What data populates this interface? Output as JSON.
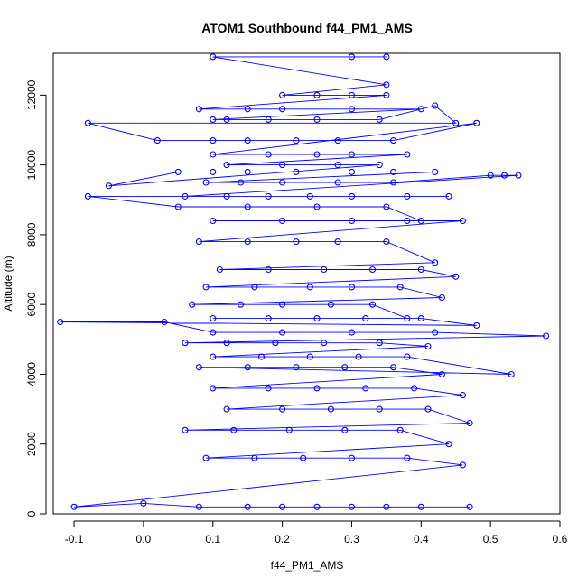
{
  "chart_data": {
    "type": "scatter",
    "title": "ATOM1 Southbound f44_PM1_AMS",
    "xlabel": "f44_PM1_AMS",
    "ylabel": "Altitude (m)",
    "xlim": [
      -0.13,
      0.6
    ],
    "ylim": [
      0,
      13200
    ],
    "x_ticks": [
      -0.1,
      0.0,
      0.1,
      0.2,
      0.3,
      0.4,
      0.5,
      0.6
    ],
    "x_tick_labels": [
      "-0.1",
      "0.0",
      "0.1",
      "0.2",
      "0.3",
      "0.4",
      "0.5",
      "0.6"
    ],
    "y_ticks": [
      0,
      2000,
      4000,
      6000,
      8000,
      10000,
      12000
    ],
    "y_tick_labels": [
      "0",
      "2000",
      "4000",
      "6000",
      "8000",
      "10000",
      "12000"
    ],
    "grid": false,
    "marker": "open-circle",
    "connected": true,
    "series": [
      {
        "color": "#0000ff",
        "x": [
          0.3,
          0.35,
          0.1,
          0.35,
          0.2,
          0.25,
          0.3,
          0.35,
          0.08,
          0.15,
          0.2,
          0.3,
          0.4,
          0.1,
          0.12,
          0.18,
          0.25,
          0.34,
          0.42,
          0.45,
          -0.08,
          0.02,
          0.1,
          0.15,
          0.22,
          0.28,
          0.36,
          0.48,
          0.1,
          0.18,
          0.25,
          0.3,
          0.38,
          0.12,
          0.2,
          0.28,
          0.34,
          -0.05,
          0.05,
          0.1,
          0.15,
          0.22,
          0.3,
          0.36,
          0.42,
          0.09,
          0.14,
          0.2,
          0.28,
          0.36,
          0.5,
          0.52,
          0.54,
          0.06,
          0.12,
          0.18,
          0.24,
          0.3,
          0.38,
          0.44,
          -0.08,
          0.05,
          0.15,
          0.25,
          0.35,
          0.4,
          0.1,
          0.2,
          0.3,
          0.38,
          0.46,
          0.08,
          0.15,
          0.22,
          0.28,
          0.35,
          0.42,
          0.11,
          0.18,
          0.26,
          0.33,
          0.4,
          0.45,
          0.09,
          0.16,
          0.24,
          0.3,
          0.37,
          0.43,
          0.07,
          0.14,
          0.2,
          0.27,
          0.33,
          0.38,
          0.1,
          0.18,
          0.25,
          0.32,
          0.4,
          0.48,
          -0.12,
          0.03,
          0.1,
          0.2,
          0.3,
          0.42,
          0.58,
          0.06,
          0.12,
          0.19,
          0.26,
          0.34,
          0.41,
          0.1,
          0.17,
          0.24,
          0.31,
          0.38,
          0.53,
          0.08,
          0.15,
          0.22,
          0.29,
          0.36,
          0.43,
          0.1,
          0.18,
          0.25,
          0.32,
          0.39,
          0.46,
          0.12,
          0.2,
          0.27,
          0.34,
          0.41,
          0.47,
          0.06,
          0.13,
          0.21,
          0.29,
          0.37,
          0.44,
          0.09,
          0.16,
          0.23,
          0.3,
          0.38,
          0.46,
          -0.1,
          0.0,
          0.08,
          0.15,
          0.2,
          0.25,
          0.3,
          0.35,
          0.4,
          0.47
        ],
        "y": [
          13100,
          13100,
          13100,
          12300,
          12000,
          12000,
          12000,
          12000,
          11600,
          11600,
          11600,
          11600,
          11600,
          11300,
          11300,
          11300,
          11300,
          11300,
          11700,
          11200,
          11200,
          10700,
          10700,
          10700,
          10700,
          10700,
          10700,
          11200,
          10300,
          10300,
          10300,
          10300,
          10300,
          10000,
          10000,
          10000,
          10000,
          9400,
          9800,
          9800,
          9800,
          9800,
          9800,
          9800,
          9800,
          9500,
          9500,
          9500,
          9500,
          9500,
          9700,
          9700,
          9700,
          9100,
          9100,
          9100,
          9100,
          9100,
          9100,
          9100,
          9100,
          8800,
          8800,
          8800,
          8800,
          8400,
          8400,
          8400,
          8400,
          8400,
          8400,
          7800,
          7800,
          7800,
          7800,
          7800,
          7200,
          7000,
          7000,
          7000,
          7000,
          7000,
          6800,
          6500,
          6500,
          6500,
          6500,
          6500,
          6200,
          6000,
          6000,
          6000,
          6000,
          6000,
          5600,
          5600,
          5600,
          5600,
          5600,
          5600,
          5400,
          5500,
          5500,
          5200,
          5200,
          5200,
          5200,
          5100,
          4900,
          4900,
          4900,
          4900,
          4900,
          4800,
          4500,
          4500,
          4500,
          4500,
          4500,
          4000,
          4200,
          4200,
          4200,
          4200,
          4200,
          4000,
          3600,
          3600,
          3600,
          3600,
          3600,
          3400,
          3000,
          3000,
          3000,
          3000,
          3000,
          2600,
          2400,
          2400,
          2400,
          2400,
          2400,
          2000,
          1600,
          1600,
          1600,
          1600,
          1600,
          1400,
          200,
          300,
          200,
          200,
          200,
          200,
          200,
          200,
          200,
          200
        ]
      }
    ]
  }
}
